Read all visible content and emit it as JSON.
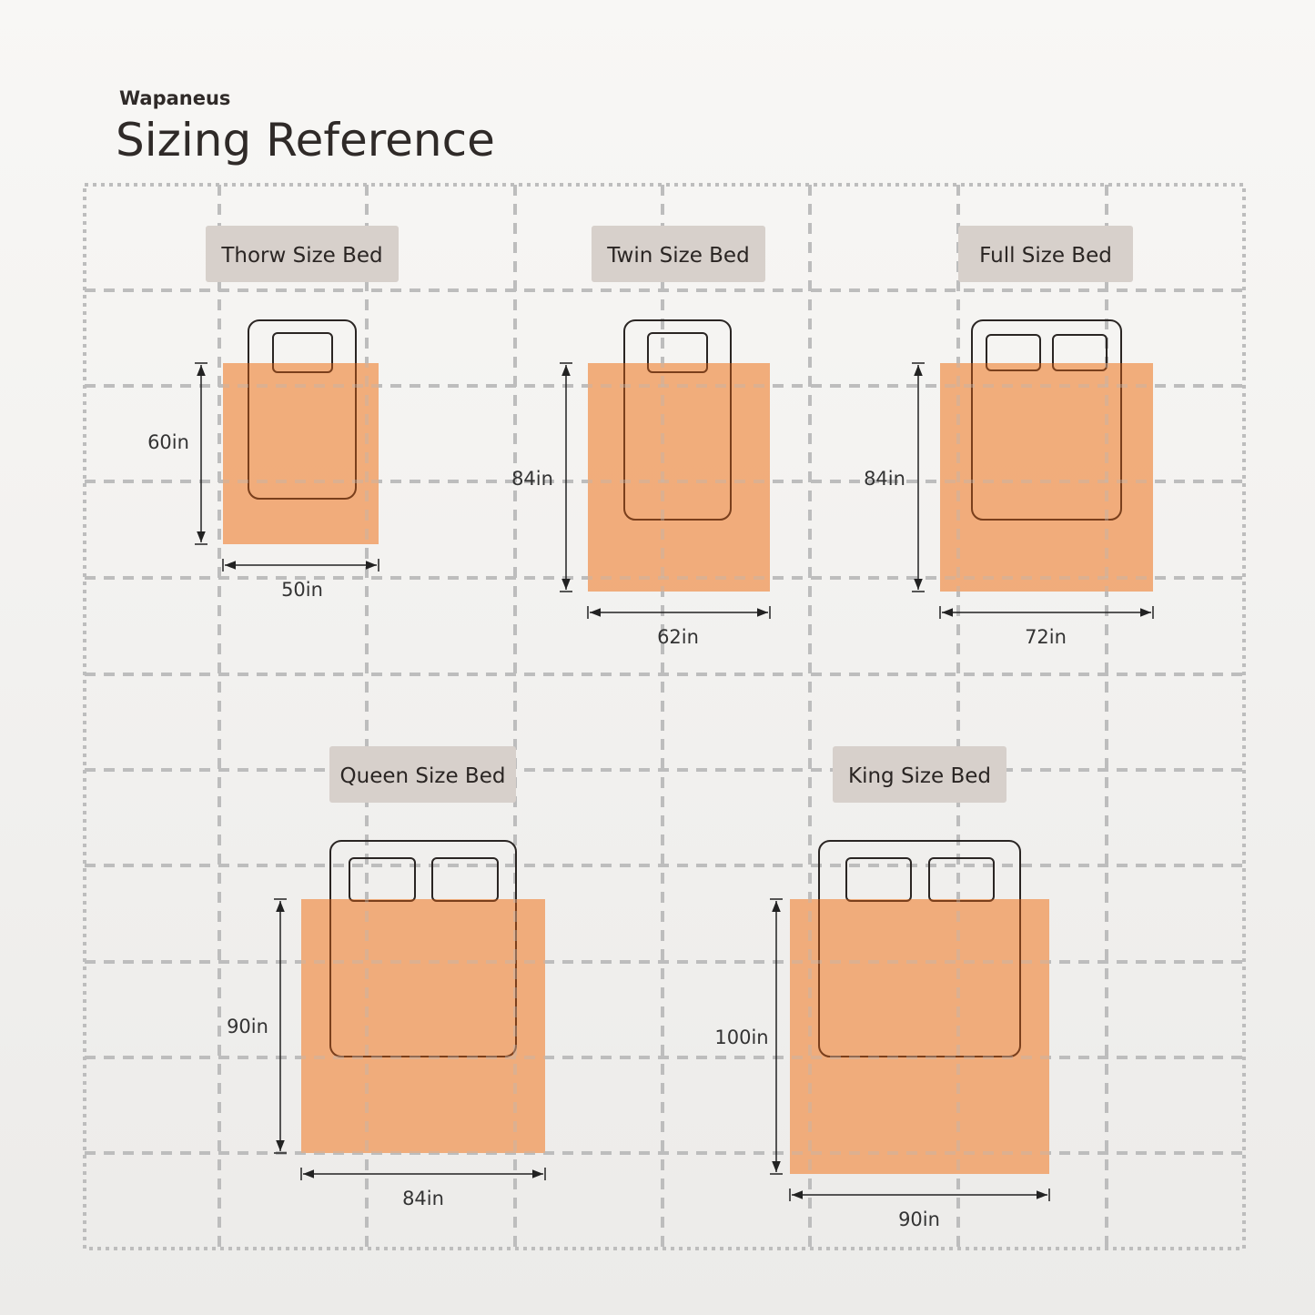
{
  "brand": "Wapaneus",
  "title": "Sizing Reference",
  "colors": {
    "blanket": "#f0a772",
    "label_bg": "#d7d0cb",
    "grid": "#bdbdbd",
    "frame": "#2a2523"
  },
  "beds": [
    {
      "name": "Thorw Size Bed",
      "width": "50in",
      "length": "60in",
      "pillows": 1
    },
    {
      "name": "Twin Size Bed",
      "width": "62in",
      "length": "84in",
      "pillows": 1
    },
    {
      "name": "Full Size Bed",
      "width": "72in",
      "length": "84in",
      "pillows": 2
    },
    {
      "name": "Queen Size Bed",
      "width": "84in",
      "length": "90in",
      "pillows": 2
    },
    {
      "name": "King Size Bed",
      "width": "90in",
      "length": "100in",
      "pillows": 2
    }
  ]
}
